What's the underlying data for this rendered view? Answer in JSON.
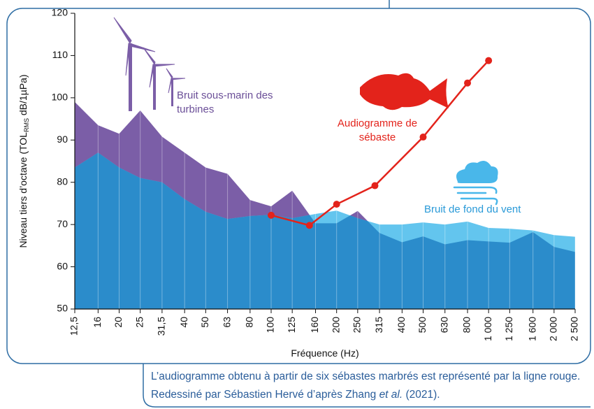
{
  "chart_data": {
    "type": "area",
    "x": [
      12.5,
      16,
      20,
      25,
      31.5,
      40,
      50,
      63,
      80,
      100,
      125,
      160,
      200,
      250,
      315,
      400,
      500,
      630,
      800,
      1000,
      1250,
      1600,
      2000,
      2500
    ],
    "series": [
      {
        "name": "Bruit sous-marin des turbines",
        "color": "#7b5ea7",
        "values": [
          99,
          93.5,
          91.5,
          97,
          90.8,
          87,
          83.5,
          82,
          75.8,
          74.3,
          78,
          70.3,
          70.3,
          73.2,
          68,
          65.8,
          67.2,
          65.3,
          66.3,
          66,
          65.7,
          68.2,
          64.7,
          63.5
        ]
      },
      {
        "name": "Bruit de fond du vent",
        "color": "#63c5ee",
        "values": [
          83.5,
          87,
          83.5,
          81,
          80,
          76,
          73,
          71.3,
          72,
          72.3,
          71.5,
          72.5,
          73.3,
          71.5,
          70,
          70,
          70.5,
          70,
          70.7,
          69.2,
          69,
          68.6,
          67.5,
          67.1
        ]
      },
      {
        "name": "Audiogramme de sébaste",
        "type": "line",
        "color": "#e3231b",
        "x": [
          100,
          150,
          200,
          300,
          500,
          800,
          1000
        ],
        "values": [
          72.2,
          69.8,
          74.8,
          79.2,
          90.7,
          103.5,
          108.8
        ]
      }
    ],
    "overlap_color": "#2b8ccb",
    "xscale": "log",
    "xlim": [
      12.5,
      2500
    ],
    "xticks": [
      {
        "value": 12.5,
        "label": "12,5"
      },
      16,
      20,
      25,
      {
        "value": 31.5,
        "label": "31,5"
      },
      40,
      50,
      63,
      80,
      100,
      125,
      160,
      200,
      250,
      315,
      400,
      500,
      630,
      800,
      {
        "value": 1000,
        "label": "1 000"
      },
      {
        "value": 1250,
        "label": "1 250"
      },
      {
        "value": 1600,
        "label": "1 600"
      },
      {
        "value": 2000,
        "label": "2 000"
      },
      {
        "value": 2500,
        "label": "2 500"
      }
    ],
    "ylim": [
      50,
      120
    ],
    "yticks": [
      50,
      60,
      70,
      80,
      90,
      100,
      110,
      120
    ],
    "xlabel": "Fréquence (Hz)",
    "ylabel": [
      "Niveau tiers d’octave (TOL",
      "RMS",
      " dB/1µPa)"
    ]
  },
  "caption": {
    "line1": "L’audiogramme obtenu à partir de six sébastes marbrés est représenté par la ligne rouge.",
    "line2": [
      "Redessiné par Sébastien Hervé d’après Zhang ",
      "et al.",
      " (2021)."
    ]
  }
}
